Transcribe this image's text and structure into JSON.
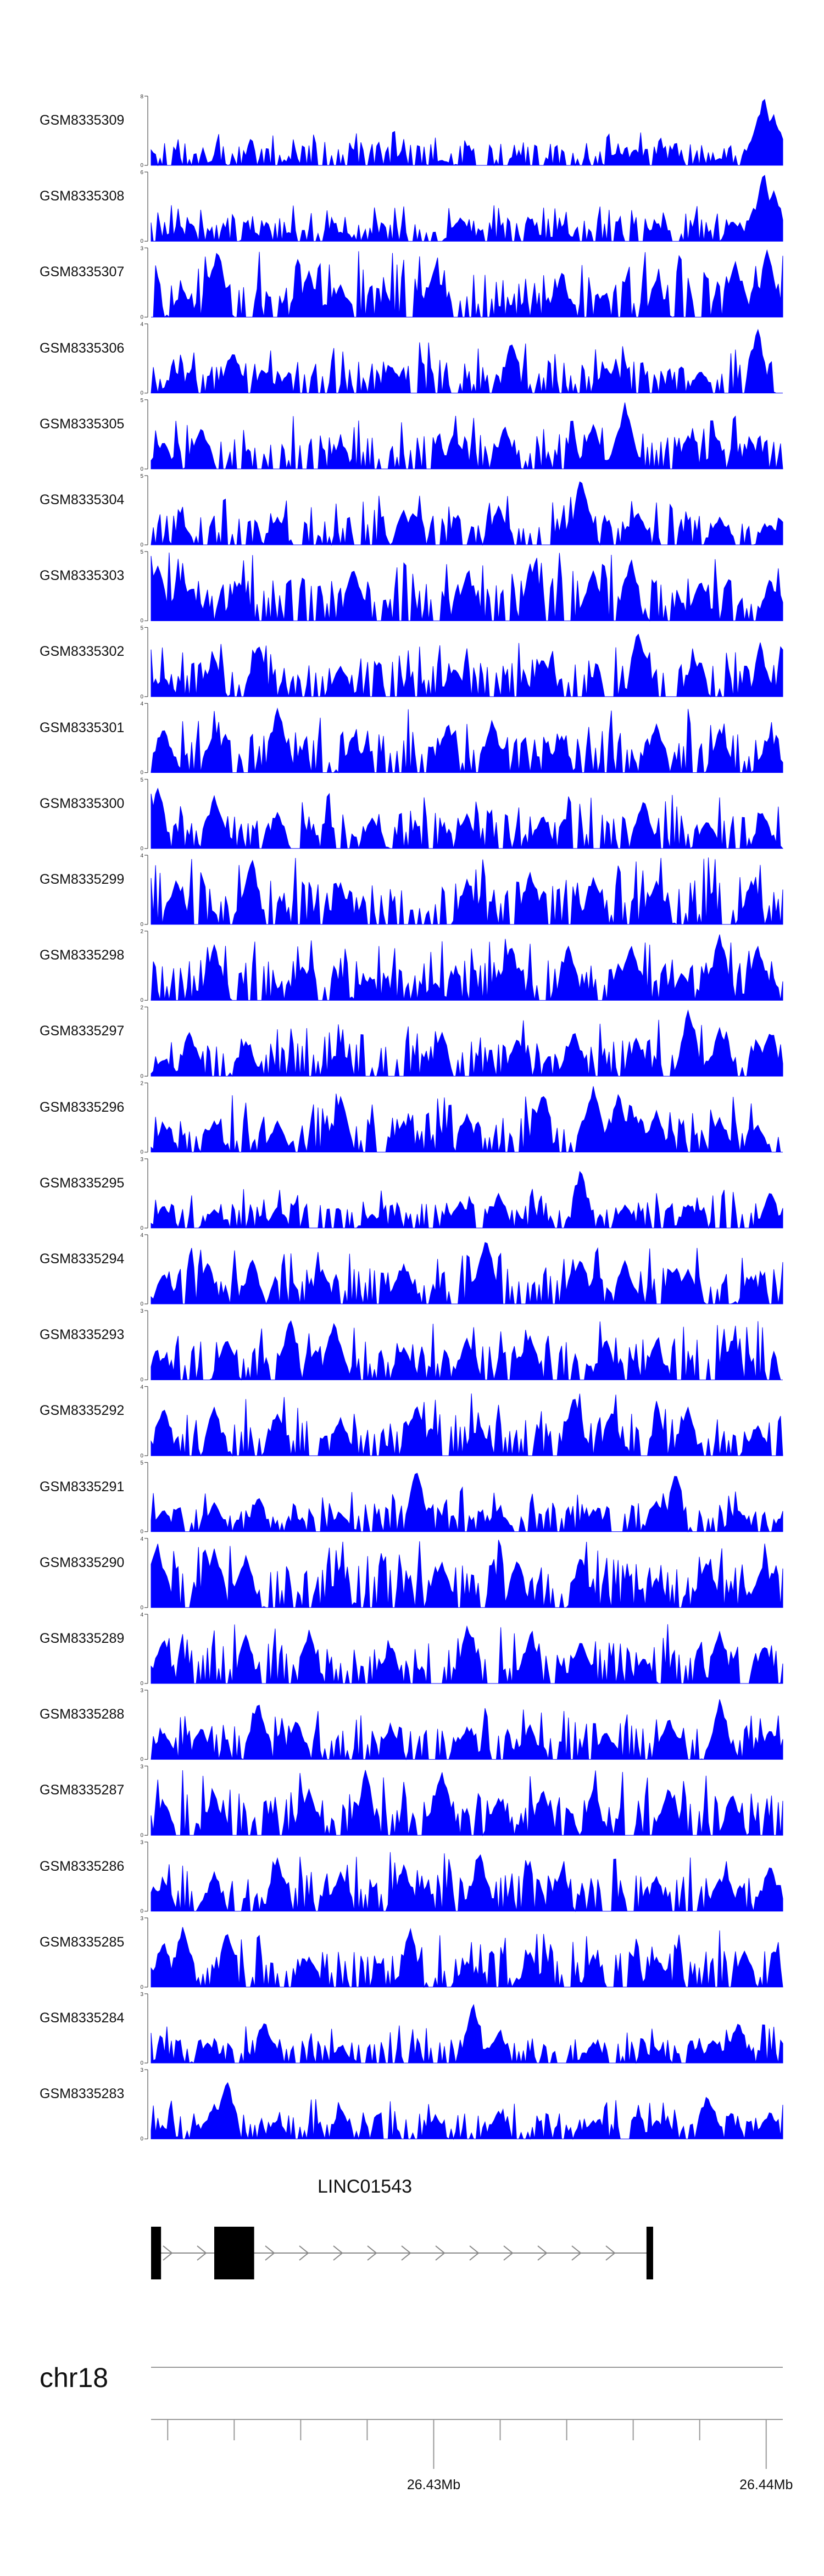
{
  "chart_data": {
    "type": "area",
    "title": "",
    "x_range_mb": [
      26.4215,
      26.4405
    ],
    "fill_color": "#0000ff",
    "tracks": [
      {
        "name": "GSM8335309",
        "ylim": [
          0,
          8
        ],
        "peaks": [
          [
            0.1,
            0.6
          ],
          [
            0.22,
            0.6
          ],
          [
            0.46,
            0.6
          ],
          [
            0.74,
            1.6
          ],
          [
            0.9,
            0.8
          ],
          [
            0.955,
            3.5
          ],
          [
            0.97,
            8
          ],
          [
            0.985,
            6
          ],
          [
            0.995,
            4
          ]
        ]
      },
      {
        "name": "GSM8335308",
        "ylim": [
          0,
          6
        ],
        "peaks": [
          [
            0.03,
            0.7
          ],
          [
            0.16,
            0.9
          ],
          [
            0.3,
            0.8
          ],
          [
            0.49,
            2.1
          ],
          [
            0.65,
            1.2
          ],
          [
            0.8,
            1.5
          ],
          [
            0.92,
            1.8
          ],
          [
            0.955,
            3
          ],
          [
            0.97,
            6
          ],
          [
            0.985,
            4.5
          ]
        ]
      },
      {
        "name": "GSM8335307",
        "ylim": [
          0,
          3
        ],
        "peaks": [
          [
            0.05,
            1.2
          ],
          [
            0.105,
            3
          ],
          [
            0.25,
            2
          ],
          [
            0.3,
            1.4
          ],
          [
            0.45,
            2.2
          ],
          [
            0.65,
            1.9
          ],
          [
            0.8,
            1.6
          ],
          [
            0.925,
            2.4
          ],
          [
            0.975,
            2.9
          ]
        ]
      },
      {
        "name": "GSM8335306",
        "ylim": [
          0,
          4
        ],
        "peaks": [
          [
            0.04,
            1.2
          ],
          [
            0.13,
            2.4
          ],
          [
            0.38,
            1.6
          ],
          [
            0.57,
            3
          ],
          [
            0.72,
            1.5
          ],
          [
            0.87,
            1.3
          ],
          [
            0.96,
            3.8
          ]
        ]
      },
      {
        "name": "GSM8335305",
        "ylim": [
          0,
          5
        ],
        "peaks": [
          [
            0.02,
            2
          ],
          [
            0.08,
            3
          ],
          [
            0.3,
            2
          ],
          [
            0.48,
            2.6
          ],
          [
            0.56,
            3.1
          ],
          [
            0.7,
            3.2
          ],
          [
            0.75,
            4.8
          ],
          [
            0.85,
            2.4
          ],
          [
            0.95,
            2
          ]
        ]
      },
      {
        "name": "GSM8335304",
        "ylim": [
          0,
          5
        ],
        "peaks": [
          [
            0.05,
            1.5
          ],
          [
            0.2,
            2
          ],
          [
            0.4,
            2.5
          ],
          [
            0.55,
            2.8
          ],
          [
            0.68,
            3.5
          ],
          [
            0.68,
            4.8
          ],
          [
            0.77,
            2.4
          ],
          [
            0.9,
            2
          ],
          [
            0.98,
            1.5
          ]
        ]
      },
      {
        "name": "GSM8335303",
        "ylim": [
          0,
          5
        ],
        "peaks": [
          [
            0.01,
            4.1
          ],
          [
            0.05,
            3.2
          ],
          [
            0.14,
            2.8
          ],
          [
            0.32,
            3.8
          ],
          [
            0.5,
            3.4
          ],
          [
            0.6,
            3.9
          ],
          [
            0.7,
            3.6
          ],
          [
            0.76,
            4.5
          ],
          [
            0.87,
            2.9
          ],
          [
            0.98,
            3.1
          ]
        ]
      },
      {
        "name": "GSM8335302",
        "ylim": [
          0,
          5
        ],
        "peaks": [
          [
            0.02,
            1.4
          ],
          [
            0.1,
            2.8
          ],
          [
            0.17,
            3.8
          ],
          [
            0.3,
            2.2
          ],
          [
            0.48,
            2.1
          ],
          [
            0.62,
            2.8
          ],
          [
            0.78,
            3.3
          ],
          [
            0.77,
            4.8
          ],
          [
            0.86,
            2.7
          ],
          [
            0.97,
            2.3
          ]
        ]
      },
      {
        "name": "GSM8335301",
        "ylim": [
          0,
          4
        ],
        "peaks": [
          [
            0.02,
            2.6
          ],
          [
            0.1,
            2.3
          ],
          [
            0.2,
            3.7
          ],
          [
            0.32,
            2.2
          ],
          [
            0.47,
            2.9
          ],
          [
            0.54,
            3.1
          ],
          [
            0.65,
            2.1
          ],
          [
            0.8,
            2.8
          ],
          [
            0.9,
            2.5
          ],
          [
            0.98,
            2.2
          ]
        ]
      },
      {
        "name": "GSM8335300",
        "ylim": [
          0,
          5
        ],
        "peaks": [
          [
            0.01,
            4.5
          ],
          [
            0.1,
            3.8
          ],
          [
            0.2,
            2.6
          ],
          [
            0.35,
            2.2
          ],
          [
            0.5,
            2.5
          ],
          [
            0.62,
            2.4
          ],
          [
            0.78,
            3.5
          ],
          [
            0.88,
            2
          ],
          [
            0.97,
            2.3
          ]
        ]
      },
      {
        "name": "GSM8335299",
        "ylim": [
          0,
          4
        ],
        "peaks": [
          [
            0.04,
            2.6
          ],
          [
            0.16,
            3.8
          ],
          [
            0.3,
            2.4
          ],
          [
            0.5,
            2.6
          ],
          [
            0.6,
            3
          ],
          [
            0.7,
            2.7
          ],
          [
            0.8,
            2.5
          ],
          [
            0.95,
            2.5
          ]
        ]
      },
      {
        "name": "GSM8335298",
        "ylim": [
          0,
          2
        ],
        "peaks": [
          [
            0.1,
            1.6
          ],
          [
            0.24,
            1
          ],
          [
            0.34,
            0.6
          ],
          [
            0.45,
            0.5
          ],
          [
            0.57,
            1.6
          ],
          [
            0.66,
            1.6
          ],
          [
            0.76,
            1.6
          ],
          [
            0.84,
            0.8
          ],
          [
            0.9,
            1.9
          ],
          [
            0.96,
            1.6
          ]
        ]
      },
      {
        "name": "GSM8335297",
        "ylim": [
          0,
          2
        ],
        "peaks": [
          [
            0.02,
            0.5
          ],
          [
            0.06,
            1.3
          ],
          [
            0.15,
            1
          ],
          [
            0.3,
            0.9
          ],
          [
            0.46,
            1.3
          ],
          [
            0.58,
            1.1
          ],
          [
            0.67,
            1.3
          ],
          [
            0.77,
            1
          ],
          [
            0.85,
            1.9
          ],
          [
            0.9,
            1.4
          ],
          [
            0.98,
            1.3
          ]
        ]
      },
      {
        "name": "GSM8335296",
        "ylim": [
          0,
          2
        ],
        "peaks": [
          [
            0.02,
            0.8
          ],
          [
            0.1,
            0.9
          ],
          [
            0.2,
            0.9
          ],
          [
            0.3,
            1.6
          ],
          [
            0.4,
            0.9
          ],
          [
            0.5,
            1.1
          ],
          [
            0.62,
            1.7
          ],
          [
            0.7,
            1.9
          ],
          [
            0.74,
            1.7
          ],
          [
            0.8,
            1.2
          ],
          [
            0.9,
            1
          ],
          [
            0.96,
            0.8
          ]
        ]
      },
      {
        "name": "GSM8335295",
        "ylim": [
          0,
          3
        ],
        "peaks": [
          [
            0.02,
            1
          ],
          [
            0.1,
            0.8
          ],
          [
            0.2,
            0.9
          ],
          [
            0.35,
            0.6
          ],
          [
            0.49,
            1.2
          ],
          [
            0.55,
            1.5
          ],
          [
            0.68,
            2.6
          ],
          [
            0.75,
            1
          ],
          [
            0.85,
            1
          ],
          [
            0.98,
            1.6
          ]
        ]
      },
      {
        "name": "GSM8335294",
        "ylim": [
          0,
          4
        ],
        "peaks": [
          [
            0.02,
            1.8
          ],
          [
            0.09,
            2.4
          ],
          [
            0.16,
            2.6
          ],
          [
            0.27,
            2
          ],
          [
            0.4,
            2.3
          ],
          [
            0.53,
            3.8
          ],
          [
            0.68,
            2.6
          ],
          [
            0.75,
            2.5
          ],
          [
            0.85,
            2
          ],
          [
            0.95,
            1.6
          ]
        ]
      },
      {
        "name": "GSM8335293",
        "ylim": [
          0,
          3
        ],
        "peaks": [
          [
            0.02,
            1
          ],
          [
            0.12,
            1.8
          ],
          [
            0.22,
            2.7
          ],
          [
            0.29,
            2.5
          ],
          [
            0.4,
            1.4
          ],
          [
            0.5,
            1.8
          ],
          [
            0.6,
            1.9
          ],
          [
            0.72,
            1.8
          ],
          [
            0.8,
            1.7
          ],
          [
            0.92,
            1.8
          ]
        ]
      },
      {
        "name": "GSM8335292",
        "ylim": [
          0,
          4
        ],
        "peaks": [
          [
            0.02,
            2.8
          ],
          [
            0.1,
            2.8
          ],
          [
            0.2,
            2.4
          ],
          [
            0.3,
            2.2
          ],
          [
            0.42,
            3
          ],
          [
            0.52,
            1.8
          ],
          [
            0.67,
            3.5
          ],
          [
            0.73,
            2.6
          ],
          [
            0.85,
            2.8
          ],
          [
            0.96,
            1.8
          ]
        ]
      },
      {
        "name": "GSM8335291",
        "ylim": [
          0,
          5
        ],
        "peaks": [
          [
            0.02,
            1.6
          ],
          [
            0.1,
            2.1
          ],
          [
            0.17,
            2.6
          ],
          [
            0.3,
            1.3
          ],
          [
            0.42,
            4.5
          ],
          [
            0.55,
            1.6
          ],
          [
            0.7,
            1.6
          ],
          [
            0.8,
            2.2
          ],
          [
            0.83,
            4.3
          ],
          [
            0.93,
            1.6
          ]
        ]
      },
      {
        "name": "GSM8335290",
        "ylim": [
          0,
          4
        ],
        "peaks": [
          [
            0.01,
            3.8
          ],
          [
            0.1,
            3.4
          ],
          [
            0.15,
            3
          ],
          [
            0.3,
            2.4
          ],
          [
            0.46,
            2.7
          ],
          [
            0.58,
            2.8
          ],
          [
            0.68,
            3
          ],
          [
            0.8,
            1.7
          ],
          [
            0.88,
            2.7
          ],
          [
            0.97,
            2.6
          ]
        ]
      },
      {
        "name": "GSM8335289",
        "ylim": [
          0,
          4
        ],
        "peaks": [
          [
            0.02,
            2.6
          ],
          [
            0.15,
            2.8
          ],
          [
            0.25,
            3
          ],
          [
            0.38,
            2.2
          ],
          [
            0.5,
            3.3
          ],
          [
            0.6,
            2.8
          ],
          [
            0.68,
            2.5
          ],
          [
            0.78,
            1.5
          ],
          [
            0.9,
            3
          ],
          [
            0.97,
            2.2
          ]
        ]
      },
      {
        "name": "GSM8335288",
        "ylim": [
          0,
          3
        ],
        "peaks": [
          [
            0.02,
            1.2
          ],
          [
            0.08,
            1.4
          ],
          [
            0.17,
            2.5
          ],
          [
            0.23,
            1.7
          ],
          [
            0.38,
            1.4
          ],
          [
            0.5,
            1.4
          ],
          [
            0.6,
            1.5
          ],
          [
            0.72,
            1.2
          ],
          [
            0.82,
            1.8
          ],
          [
            0.9,
            2.6
          ],
          [
            0.98,
            1.3
          ]
        ]
      },
      {
        "name": "GSM8335287",
        "ylim": [
          0,
          3
        ],
        "peaks": [
          [
            0.02,
            1.4
          ],
          [
            0.1,
            1.8
          ],
          [
            0.25,
            2
          ],
          [
            0.34,
            2.9
          ],
          [
            0.46,
            2.8
          ],
          [
            0.55,
            1.6
          ],
          [
            0.62,
            2
          ],
          [
            0.7,
            2
          ],
          [
            0.82,
            2
          ],
          [
            0.92,
            1.8
          ]
        ]
      },
      {
        "name": "GSM8335286",
        "ylim": [
          0,
          3
        ],
        "peaks": [
          [
            0.02,
            1.3
          ],
          [
            0.1,
            1.7
          ],
          [
            0.2,
            2.3
          ],
          [
            0.3,
            1.7
          ],
          [
            0.4,
            2
          ],
          [
            0.52,
            2.6
          ],
          [
            0.65,
            1.8
          ],
          [
            0.8,
            1.5
          ],
          [
            0.9,
            1.4
          ],
          [
            0.98,
            2
          ]
        ]
      },
      {
        "name": "GSM8335285",
        "ylim": [
          0,
          3
        ],
        "peaks": [
          [
            0.02,
            2
          ],
          [
            0.05,
            2.6
          ],
          [
            0.12,
            2.4
          ],
          [
            0.25,
            1.3
          ],
          [
            0.41,
            2.6
          ],
          [
            0.5,
            1.1
          ],
          [
            0.6,
            1.5
          ],
          [
            0.7,
            1.4
          ],
          [
            0.8,
            1.3
          ],
          [
            0.94,
            1.6
          ]
        ]
      },
      {
        "name": "GSM8335284",
        "ylim": [
          0,
          3
        ],
        "peaks": [
          [
            0.02,
            0.4
          ],
          [
            0.09,
            0.9
          ],
          [
            0.18,
            1.8
          ],
          [
            0.3,
            0.7
          ],
          [
            0.51,
            2.6
          ],
          [
            0.55,
            1.3
          ],
          [
            0.7,
            0.9
          ],
          [
            0.8,
            0.6
          ],
          [
            0.89,
            1
          ],
          [
            0.93,
            1.8
          ]
        ]
      },
      {
        "name": "GSM8335283",
        "ylim": [
          0,
          3
        ],
        "peaks": [
          [
            0.02,
            0.5
          ],
          [
            0.1,
            1.5
          ],
          [
            0.12,
            2.6
          ],
          [
            0.2,
            0.8
          ],
          [
            0.3,
            1.3
          ],
          [
            0.45,
            1
          ],
          [
            0.55,
            1.2
          ],
          [
            0.7,
            0.8
          ],
          [
            0.8,
            0.8
          ],
          [
            0.88,
            1.9
          ],
          [
            0.98,
            1.2
          ]
        ]
      }
    ],
    "gene": {
      "name": "LINC01543",
      "start_mb": 26.4215,
      "end_mb": 26.4366,
      "strand": "+",
      "exons_mb": [
        [
          26.4215,
          26.4218
        ],
        [
          26.4234,
          26.4246
        ],
        [
          26.4364,
          26.4366
        ]
      ]
    },
    "chromosome": "chr18",
    "axis": {
      "ticks_mb": [
        26.422,
        26.424,
        26.426,
        26.428,
        26.43,
        26.432,
        26.434,
        26.436,
        26.438,
        26.44
      ],
      "labels": [
        {
          "value_mb": 26.43,
          "text": "26.43Mb"
        },
        {
          "value_mb": 26.44,
          "text": "26.44Mb"
        }
      ]
    }
  }
}
